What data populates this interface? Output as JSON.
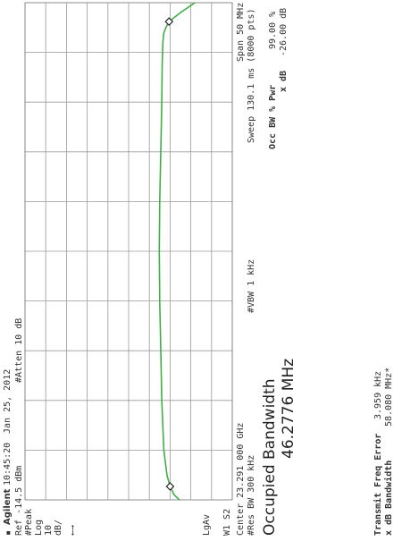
{
  "header": {
    "brand": "Agilent",
    "time": "10:45:20",
    "date": "Jan 25, 2012"
  },
  "left_panel": {
    "ref": "Ref -14.5 dBm",
    "peak": "#Peak",
    "log": "Log",
    "scale_value": "10",
    "scale_unit": "dB/",
    "arrow": "←→",
    "lgav": "LgAv",
    "w1s2": "W1  S2"
  },
  "atten": "#Atten 10 dB",
  "center": {
    "freq": "Center 23.291 000 GHz",
    "res_bw": "#Res BW 300 kHz"
  },
  "vbw": "#VBW 1 kHz",
  "span_sweep": {
    "span": "Span 50 MHz",
    "sweep": "Sweep 130.1 ms (8000 pts)"
  },
  "measurement": {
    "title": "Occupied Bandwidth",
    "value": "46.2776 MHz",
    "occ_label": "Occ BW % Pwr",
    "occ_value": "99.00 %",
    "xdb_label": "x dB",
    "xdb_value": "-26.00 dB",
    "tfe_label": "Transmit Freq Error",
    "tfe_value": "3.959 kHz",
    "xbw_label": "x dB Bandwidth",
    "xbw_value": "58.080 MHz*"
  },
  "chart_data": {
    "type": "line",
    "x_div": 10,
    "y_div": 10,
    "series": [
      {
        "color": "#3fae49",
        "x_div": [
          0,
          0.1,
          0.27,
          0.5,
          1.0,
          2.0,
          3.0,
          4.0,
          5.0,
          6.0,
          7.0,
          8.0,
          8.8,
          9.2,
          9.4,
          9.5,
          9.62,
          9.8,
          10.0
        ],
        "y_div": [
          2.55,
          2.8,
          3.0,
          3.15,
          3.3,
          3.4,
          3.45,
          3.5,
          3.52,
          3.5,
          3.45,
          3.4,
          3.38,
          3.35,
          3.3,
          3.2,
          3.05,
          2.5,
          1.8
        ]
      }
    ],
    "markers_x_div": [
      0.27,
      9.62
    ],
    "grid": true
  }
}
